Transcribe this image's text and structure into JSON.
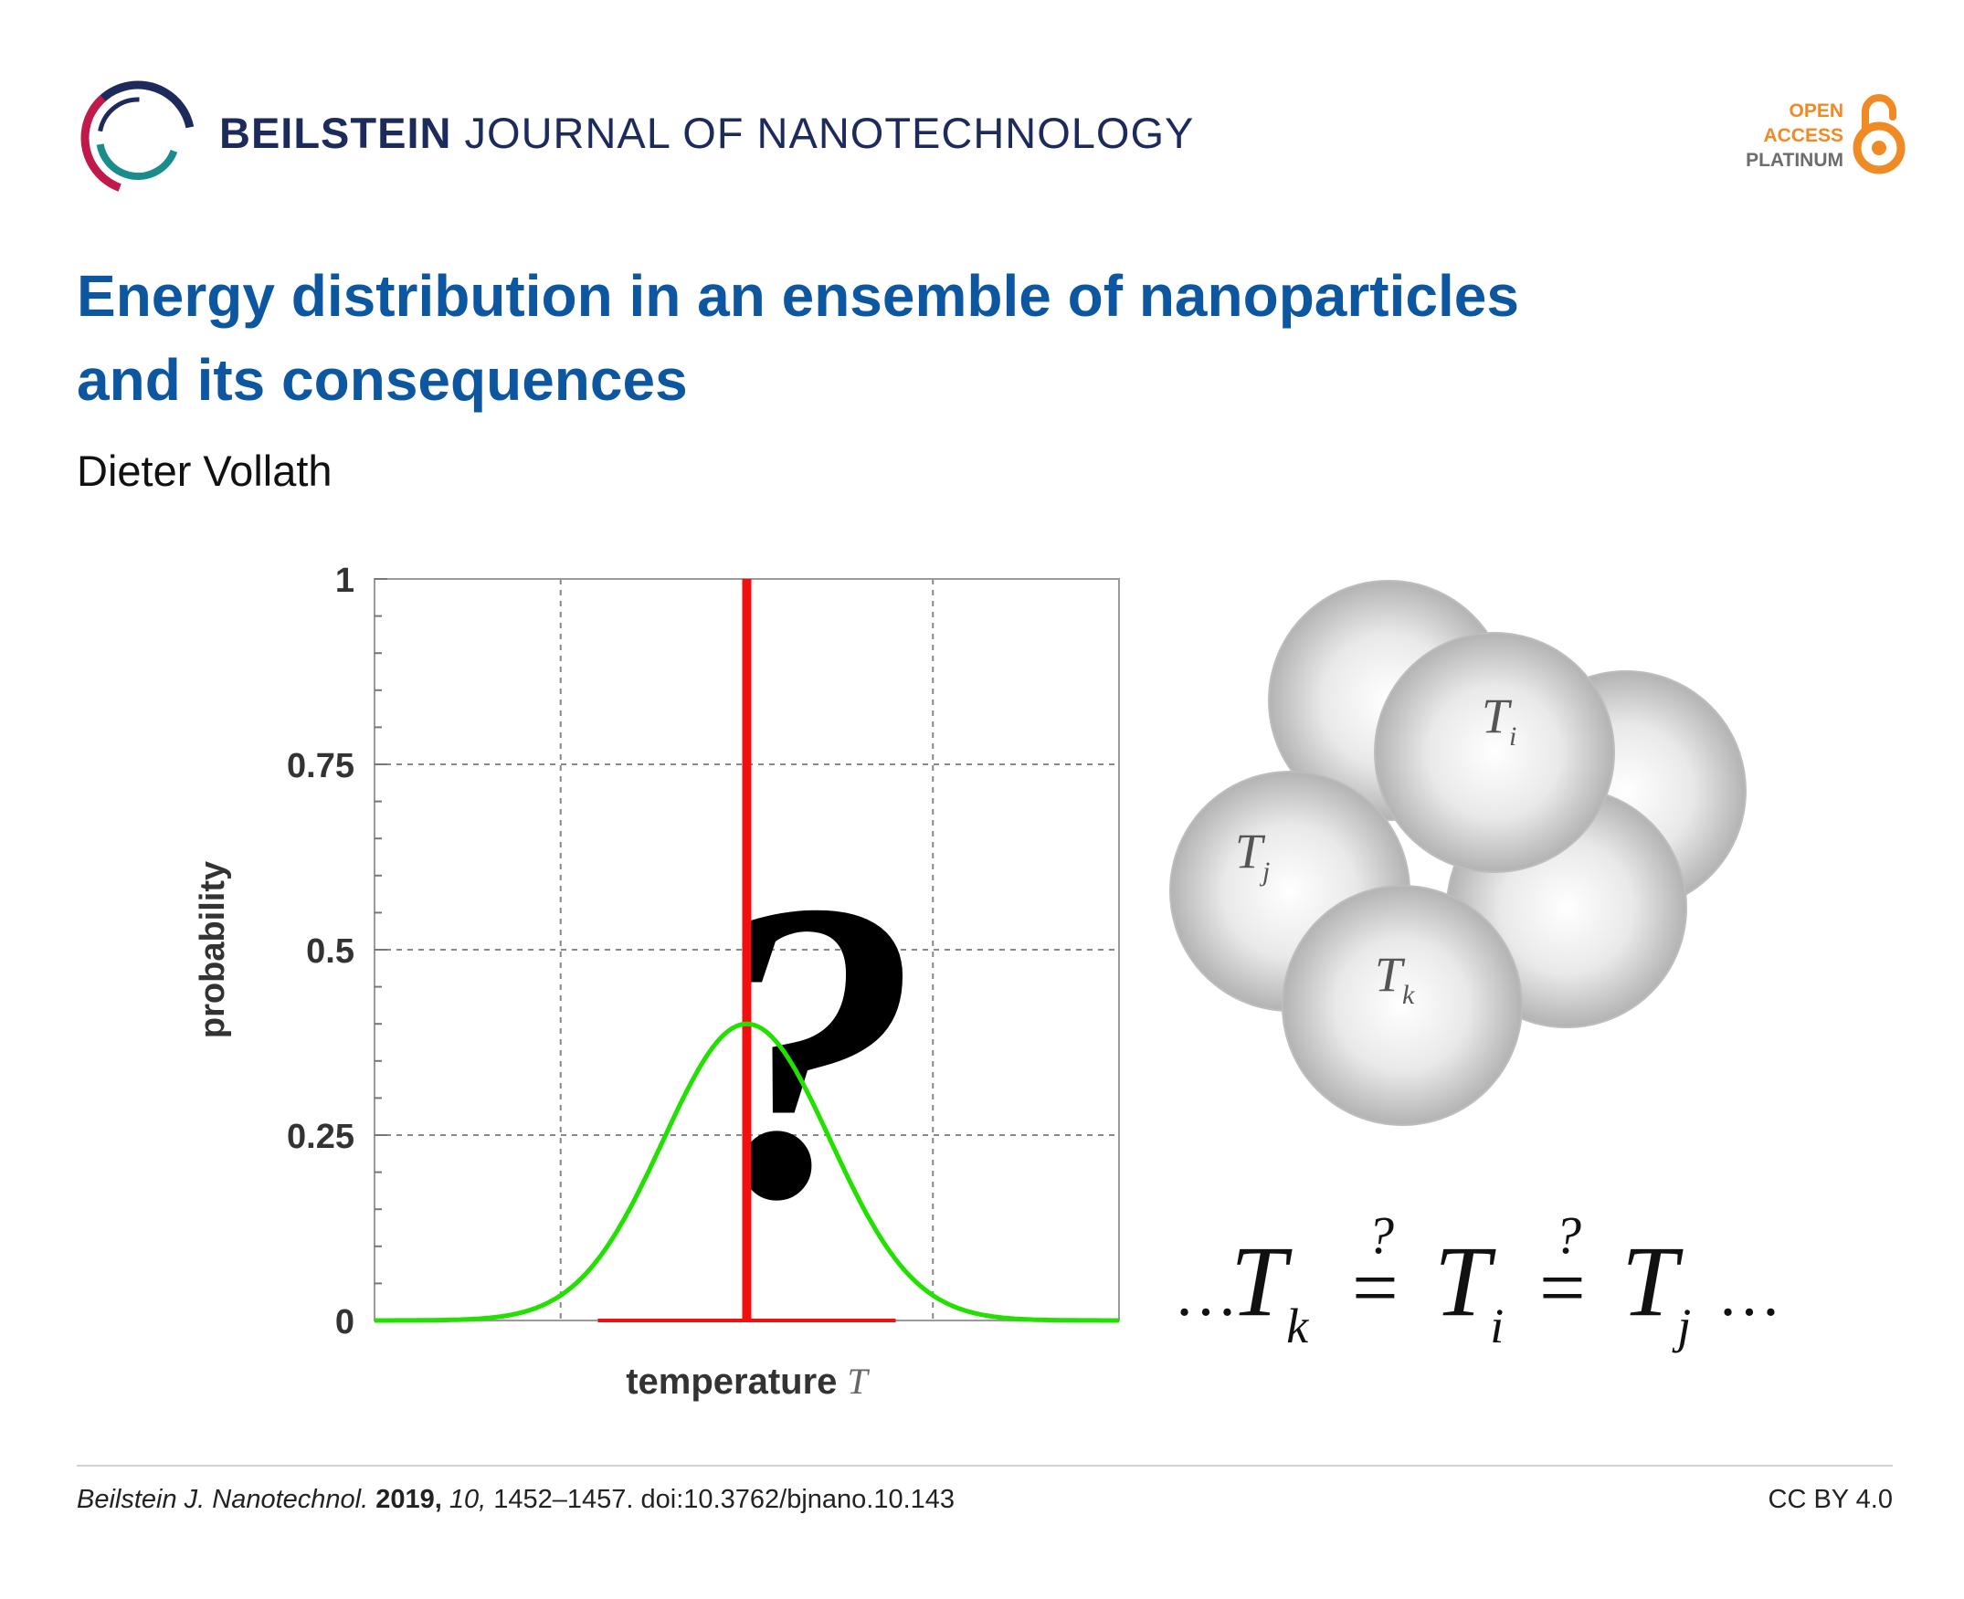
{
  "journal": {
    "name_bold": "BEILSTEIN",
    "name_rest": "JOURNAL OF NANOTECHNOLOGY",
    "logo_icon": "beilstein-ring-logo",
    "colors": {
      "navy": "#1d2a5c",
      "crimson": "#c0194a",
      "teal": "#1a8c8c"
    }
  },
  "open_access": {
    "line1": "OPEN",
    "line2": "ACCESS",
    "line3": "PLATINUM",
    "icon": "open-lock-icon",
    "orange": "#f08a24",
    "gray": "#6d6d6d"
  },
  "article": {
    "title_line1": "Energy distribution in an ensemble of nanoparticles",
    "title_line2": "and its consequences",
    "author": "Dieter Vollath",
    "title_color": "#0d57a0"
  },
  "chart_data": {
    "type": "line",
    "ylabel": "probability",
    "xlabel_text": "temperature",
    "xlabel_symbol": "T",
    "ylim": [
      0,
      1
    ],
    "yticks": [
      "0",
      "0.25",
      "0.5",
      "0.75",
      "1"
    ],
    "ytick_values": [
      0,
      0.25,
      0.5,
      0.75,
      1
    ],
    "xlim": [
      0,
      4
    ],
    "x_gridlines": [
      1,
      2,
      3
    ],
    "grid": true,
    "series": [
      {
        "kind": "gaussian",
        "mean": 2,
        "sigma": 0.45,
        "peak": 0.4,
        "color": "#22e000"
      },
      {
        "kind": "delta",
        "x": 2,
        "base_x": [
          1.2,
          2.8
        ],
        "color": "#f01010"
      }
    ],
    "overlay_glyph": "?"
  },
  "illustration": {
    "sphere_labels": [
      {
        "base": "T",
        "sub": "i"
      },
      {
        "base": "T",
        "sub": "j"
      },
      {
        "base": "T",
        "sub": "k"
      }
    ],
    "equation": {
      "lead": "…",
      "terms": [
        {
          "base": "T",
          "sub": "k"
        },
        {
          "base": "T",
          "sub": "i"
        },
        {
          "base": "T",
          "sub": "j"
        }
      ],
      "relation": "=",
      "relation_mark": "?",
      "trail": "…"
    }
  },
  "citation": {
    "journal_abbr": "Beilstein J. Nanotechnol.",
    "year": "2019,",
    "volume": "10,",
    "rest": "1452–1457. doi:10.3762/bjnano.10.143",
    "license": "CC BY 4.0"
  }
}
